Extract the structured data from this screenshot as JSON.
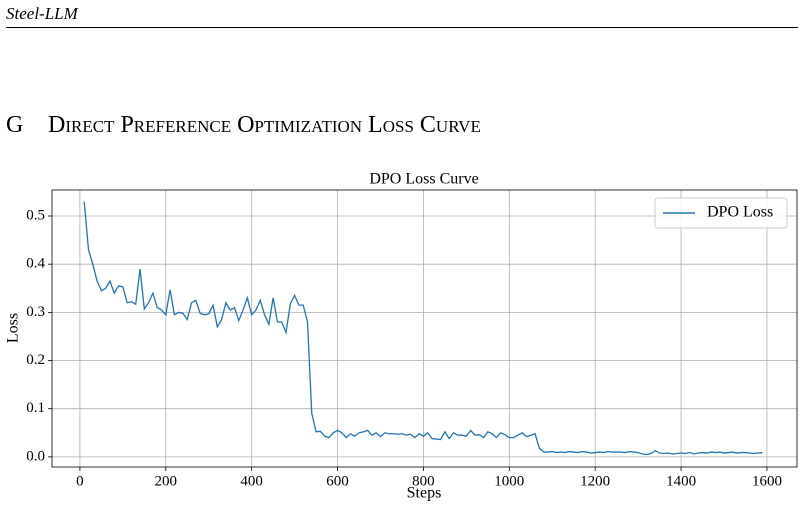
{
  "header": {
    "running_title": "Steel-LLM"
  },
  "section": {
    "number": "G",
    "title": "Direct Preference Optimization Loss Curve"
  },
  "chart_data": {
    "type": "line",
    "title": "DPO Loss Curve",
    "xlabel": "Steps",
    "ylabel": "Loss",
    "x": [
      10,
      20,
      30,
      40,
      50,
      60,
      70,
      80,
      90,
      100,
      110,
      120,
      130,
      140,
      150,
      160,
      170,
      180,
      190,
      200,
      210,
      220,
      230,
      240,
      250,
      260,
      270,
      280,
      290,
      300,
      310,
      320,
      330,
      340,
      350,
      360,
      370,
      380,
      390,
      400,
      410,
      420,
      430,
      440,
      450,
      460,
      470,
      480,
      490,
      500,
      510,
      520,
      530,
      540,
      550,
      560,
      570,
      580,
      590,
      600,
      610,
      620,
      630,
      640,
      650,
      660,
      670,
      680,
      690,
      700,
      710,
      720,
      730,
      740,
      750,
      760,
      770,
      780,
      790,
      800,
      810,
      820,
      830,
      840,
      850,
      860,
      870,
      880,
      890,
      900,
      910,
      920,
      930,
      940,
      950,
      960,
      970,
      980,
      990,
      1000,
      1010,
      1020,
      1030,
      1040,
      1050,
      1060,
      1070,
      1080,
      1090,
      1100,
      1110,
      1120,
      1130,
      1140,
      1150,
      1160,
      1170,
      1180,
      1190,
      1200,
      1210,
      1220,
      1230,
      1240,
      1250,
      1260,
      1270,
      1280,
      1290,
      1300,
      1310,
      1320,
      1330,
      1340,
      1350,
      1360,
      1370,
      1380,
      1390,
      1400,
      1410,
      1420,
      1430,
      1440,
      1450,
      1460,
      1470,
      1480,
      1490,
      1500,
      1510,
      1520,
      1530,
      1540,
      1550,
      1560,
      1570,
      1580,
      1590
    ],
    "series": [
      {
        "name": "DPO Loss",
        "color": "#1f77b4",
        "values": [
          0.53,
          0.43,
          0.4,
          0.365,
          0.345,
          0.35,
          0.365,
          0.34,
          0.355,
          0.353,
          0.32,
          0.322,
          0.317,
          0.39,
          0.307,
          0.32,
          0.34,
          0.31,
          0.305,
          0.295,
          0.347,
          0.295,
          0.3,
          0.298,
          0.285,
          0.32,
          0.325,
          0.298,
          0.295,
          0.297,
          0.315,
          0.27,
          0.285,
          0.32,
          0.305,
          0.31,
          0.283,
          0.305,
          0.33,
          0.295,
          0.305,
          0.325,
          0.295,
          0.275,
          0.33,
          0.28,
          0.28,
          0.258,
          0.318,
          0.335,
          0.315,
          0.315,
          0.28,
          0.09,
          0.052,
          0.053,
          0.043,
          0.04,
          0.05,
          0.055,
          0.05,
          0.04,
          0.048,
          0.043,
          0.05,
          0.052,
          0.055,
          0.045,
          0.05,
          0.042,
          0.05,
          0.048,
          0.048,
          0.047,
          0.048,
          0.045,
          0.047,
          0.04,
          0.048,
          0.043,
          0.05,
          0.038,
          0.037,
          0.036,
          0.052,
          0.038,
          0.05,
          0.045,
          0.045,
          0.043,
          0.055,
          0.045,
          0.046,
          0.04,
          0.052,
          0.048,
          0.04,
          0.05,
          0.046,
          0.04,
          0.04,
          0.045,
          0.05,
          0.042,
          0.045,
          0.048,
          0.018,
          0.01,
          0.01,
          0.011,
          0.009,
          0.01,
          0.009,
          0.011,
          0.01,
          0.009,
          0.011,
          0.01,
          0.008,
          0.009,
          0.01,
          0.009,
          0.011,
          0.01,
          0.01,
          0.01,
          0.009,
          0.011,
          0.01,
          0.009,
          0.006,
          0.005,
          0.007,
          0.013,
          0.008,
          0.007,
          0.008,
          0.006,
          0.007,
          0.008,
          0.007,
          0.009,
          0.006,
          0.008,
          0.009,
          0.008,
          0.01,
          0.009,
          0.01,
          0.008,
          0.009,
          0.01,
          0.008,
          0.009,
          0.009,
          0.008,
          0.007,
          0.008,
          0.009
        ]
      }
    ],
    "xlim": [
      -65,
      1670
    ],
    "ylim": [
      -0.021,
      0.554
    ],
    "xticks": [
      0,
      200,
      400,
      600,
      800,
      1000,
      1200,
      1400,
      1600
    ],
    "yticks": [
      {
        "value": 0,
        "label": "0.0"
      },
      0.1,
      0.2,
      0.3,
      0.4,
      0.5
    ],
    "grid": true,
    "legend": "upper right"
  }
}
